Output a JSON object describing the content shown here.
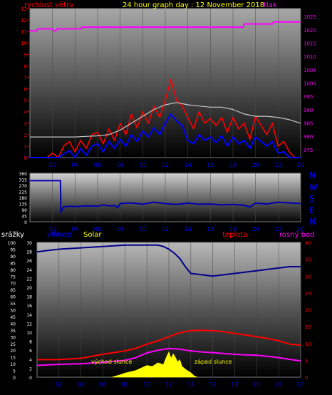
{
  "title": "24 hour graph day : 12 November 2018",
  "legend_labels": {
    "wind": "rychlost větru",
    "pressure": "tlak",
    "rain": "srážky",
    "humidity": "vlhkost",
    "solar": "Solar",
    "temperature": "teplota",
    "dewpoint": "rosný bod",
    "compass": [
      "N",
      "W",
      "S",
      "E",
      "N"
    ]
  },
  "annotations": {
    "sunrise": "východ slunce",
    "sunset": "západ slunce"
  },
  "colors": {
    "wind_gust": "#ff0000",
    "wind_avg": "#0000ff",
    "pressure": "#ff00ff",
    "wind_dir": "#0000b0",
    "humidity": "#00008b",
    "solar": "#ffff00",
    "temperature": "#ff0000",
    "dewpoint": "#ff00ff",
    "rain_axis": "#ffffff"
  },
  "chart_data": [
    {
      "type": "line",
      "x_ticks": [
        "02",
        "04",
        "06",
        "08",
        "10",
        "12",
        "14",
        "16",
        "18",
        "20",
        "22",
        "00"
      ],
      "y_left": {
        "label": "rychlost větru",
        "min": 0,
        "max": 13,
        "ticks": [
          0,
          1,
          2,
          3,
          4,
          5,
          6,
          7,
          8,
          9,
          10,
          11,
          12,
          13
        ]
      },
      "y_right": {
        "label": "tlak",
        "min": 972,
        "max": 1028,
        "ticks": [
          975,
          980,
          985,
          990,
          995,
          1000,
          1005,
          1010,
          1015,
          1020,
          1025
        ]
      },
      "series": [
        {
          "name": "rychlost větru",
          "key": "wind_gust",
          "axis": "left",
          "x": [
            0,
            0.5,
            1,
            1.5,
            2,
            2.5,
            3,
            3.5,
            4,
            4.5,
            5,
            5.5,
            6,
            6.5,
            7,
            7.5,
            8,
            8.5,
            9,
            9.5,
            10,
            10.5,
            11,
            11.5,
            12,
            12.5,
            13,
            13.5,
            14,
            14.5,
            15,
            15.5,
            16,
            16.5,
            17,
            17.5,
            18,
            18.5,
            19,
            19.5,
            20,
            20.5,
            21,
            21.5,
            22,
            22.5,
            23,
            23.5,
            24
          ],
          "y": [
            0,
            0,
            0,
            0,
            0.4,
            0,
            1,
            1.4,
            0.5,
            1.5,
            0.8,
            2,
            2.2,
            1.2,
            2.5,
            1.5,
            3,
            2,
            3.8,
            2.6,
            4,
            3,
            4.5,
            3.5,
            5,
            6.8,
            5,
            4.5,
            3.5,
            2.5,
            4,
            3,
            3.4,
            2.8,
            3.5,
            2.2,
            3.5,
            2.5,
            3,
            1.6,
            3.6,
            2.8,
            2,
            3,
            1,
            1.4,
            0.5,
            0,
            0
          ]
        },
        {
          "name": "wind average",
          "key": "wind_avg",
          "axis": "left",
          "x": [
            0,
            0.5,
            1,
            1.5,
            2,
            2.5,
            3,
            3.5,
            4,
            4.5,
            5,
            5.5,
            6,
            6.5,
            7,
            7.5,
            8,
            8.5,
            9,
            9.5,
            10,
            10.5,
            11,
            11.5,
            12,
            12.5,
            13,
            13.5,
            14,
            14.5,
            15,
            15.5,
            16,
            16.5,
            17,
            17.5,
            18,
            18.5,
            19,
            19.5,
            20,
            20.5,
            21,
            21.5,
            22,
            22.5,
            23,
            23.5,
            24
          ],
          "y": [
            0,
            0,
            0,
            0,
            0,
            0,
            0.3,
            0.6,
            0,
            0.8,
            0.2,
            1,
            1.2,
            0.5,
            1.4,
            0.8,
            1.6,
            1,
            2,
            1.4,
            2.3,
            1.8,
            2.6,
            2,
            3,
            3.8,
            3.2,
            2.8,
            1.5,
            1.2,
            2,
            1.5,
            1.8,
            1.3,
            1.9,
            1,
            1.8,
            1.2,
            1.5,
            0.8,
            1.8,
            1.4,
            1,
            1.4,
            0.4,
            0.5,
            0,
            0,
            0
          ]
        },
        {
          "name": "gust envelope",
          "key": "wind_env",
          "axis": "left",
          "x": [
            0,
            2,
            4,
            6,
            7,
            8,
            9,
            10,
            11,
            12,
            13,
            14,
            15,
            16,
            17,
            18,
            19,
            20,
            21,
            22,
            23,
            24
          ],
          "y": [
            1.8,
            1.8,
            1.8,
            1.9,
            2,
            2.4,
            3,
            3.6,
            4.2,
            4.6,
            4.8,
            4.6,
            4.5,
            4.4,
            4.4,
            4.2,
            3.8,
            3.6,
            3.6,
            3.5,
            3.3,
            3.0
          ]
        },
        {
          "name": "tlak",
          "key": "pressure",
          "axis": "right",
          "x": [
            0,
            0.6,
            0.7,
            2,
            2.1,
            2.3,
            2.4,
            4.5,
            4.6,
            18.9,
            19,
            21.5,
            21.6,
            23.9,
            24
          ],
          "y": [
            1019.6,
            1019.6,
            1020.4,
            1020.4,
            1019.6,
            1019.6,
            1020.4,
            1020.4,
            1021,
            1021,
            1022.2,
            1022.2,
            1023,
            1023,
            1023
          ]
        }
      ]
    },
    {
      "type": "line",
      "x_ticks": [
        "02",
        "04",
        "06",
        "08",
        "10",
        "12",
        "14",
        "16",
        "18",
        "20",
        "22",
        "00"
      ],
      "y_left": {
        "min": 0,
        "max": 360,
        "ticks": [
          0,
          45,
          90,
          135,
          180,
          225,
          270,
          315,
          360
        ]
      },
      "series": [
        {
          "name": "wind direction",
          "key": "wind_dir",
          "x": [
            0,
            2.7,
            2.75,
            3,
            3.5,
            4,
            5,
            6,
            6.5,
            7,
            7.5,
            7.8,
            8,
            9,
            10,
            11,
            12,
            13,
            14,
            15,
            16,
            17,
            18,
            19,
            19.5,
            20,
            21,
            22,
            23,
            24
          ],
          "y": [
            305,
            305,
            75,
            110,
            115,
            112,
            118,
            115,
            125,
            118,
            120,
            105,
            135,
            140,
            130,
            145,
            135,
            128,
            138,
            130,
            132,
            125,
            128,
            122,
            110,
            138,
            132,
            145,
            140,
            135
          ]
        }
      ]
    },
    {
      "type": "line",
      "x_ticks": [
        "02",
        "04",
        "06",
        "08",
        "10",
        "12",
        "14",
        "16",
        "18",
        "20",
        "22",
        "00"
      ],
      "y_outer_left": {
        "label": "srážky",
        "min": 0,
        "max": 100,
        "ticks": [
          0,
          5,
          10,
          15,
          20,
          25,
          30,
          35,
          40,
          45,
          50,
          55,
          60,
          65,
          70,
          75,
          80,
          85,
          90,
          95,
          100
        ]
      },
      "y_inner_left": {
        "label": "vlhkost",
        "min": 0,
        "max": 30,
        "ticks": [
          0,
          2,
          4,
          6,
          8,
          10,
          12,
          14,
          16,
          18,
          20,
          22,
          24,
          26,
          28,
          30
        ]
      },
      "y_right": {
        "label": "teplota",
        "min": 0,
        "max": 40,
        "ticks": [
          0,
          5,
          10,
          15,
          20,
          25,
          30,
          35,
          40
        ]
      },
      "series": [
        {
          "name": "vlhkost",
          "key": "humidity",
          "axis": "outer_left",
          "x": [
            0,
            1,
            2,
            4,
            6,
            8,
            10,
            11,
            11.5,
            12,
            12.5,
            13,
            13.5,
            14,
            15,
            16,
            17,
            18,
            19,
            20,
            21,
            22,
            23,
            24
          ],
          "y": [
            93,
            94,
            95,
            96,
            97,
            98,
            98,
            98,
            97,
            95,
            92,
            88,
            82,
            77,
            76,
            75,
            76,
            77,
            78,
            79,
            80,
            81,
            82,
            82
          ]
        },
        {
          "name": "teplota",
          "key": "temperature",
          "axis": "right",
          "x": [
            0,
            2,
            4,
            5,
            6,
            7,
            8,
            9,
            10,
            11,
            12,
            13,
            14,
            15,
            16,
            17,
            18,
            19,
            20,
            21,
            22,
            23,
            24
          ],
          "y": [
            5.2,
            5.2,
            5.6,
            6.2,
            6.8,
            7.3,
            7.8,
            8.6,
            9.8,
            10.8,
            12,
            13.2,
            13.8,
            13.9,
            13.8,
            13.5,
            13,
            12.5,
            12,
            11.5,
            10.8,
            9.8,
            9.5
          ]
        },
        {
          "name": "rosný bod",
          "key": "dewpoint",
          "axis": "right",
          "x": [
            0,
            2,
            4,
            6,
            8,
            9,
            10,
            11,
            12,
            13,
            14,
            15,
            16,
            17,
            18,
            19,
            20,
            21,
            22,
            23,
            24
          ],
          "y": [
            3.5,
            3.8,
            4,
            4.4,
            5,
            5.8,
            7.2,
            8,
            8.5,
            8.3,
            7.8,
            7.5,
            7.3,
            7,
            6.8,
            6.6,
            6.5,
            6.2,
            5.8,
            5.3,
            4.8
          ]
        },
        {
          "name": "Solar",
          "key": "solar",
          "axis": "inner_left",
          "x": [
            6.8,
            7.5,
            8,
            9,
            10,
            10.5,
            11,
            11.5,
            11.8,
            12,
            12.2,
            12.4,
            12.6,
            12.8,
            13,
            13.2,
            13.5,
            14,
            14.3,
            14.6
          ],
          "y": [
            0,
            0.5,
            0.9,
            1.5,
            2.6,
            2.4,
            3.2,
            2.8,
            4.6,
            5.6,
            4.2,
            5.2,
            4.4,
            3.4,
            3.9,
            2.4,
            1.8,
            1,
            0.3,
            0
          ]
        }
      ]
    }
  ]
}
